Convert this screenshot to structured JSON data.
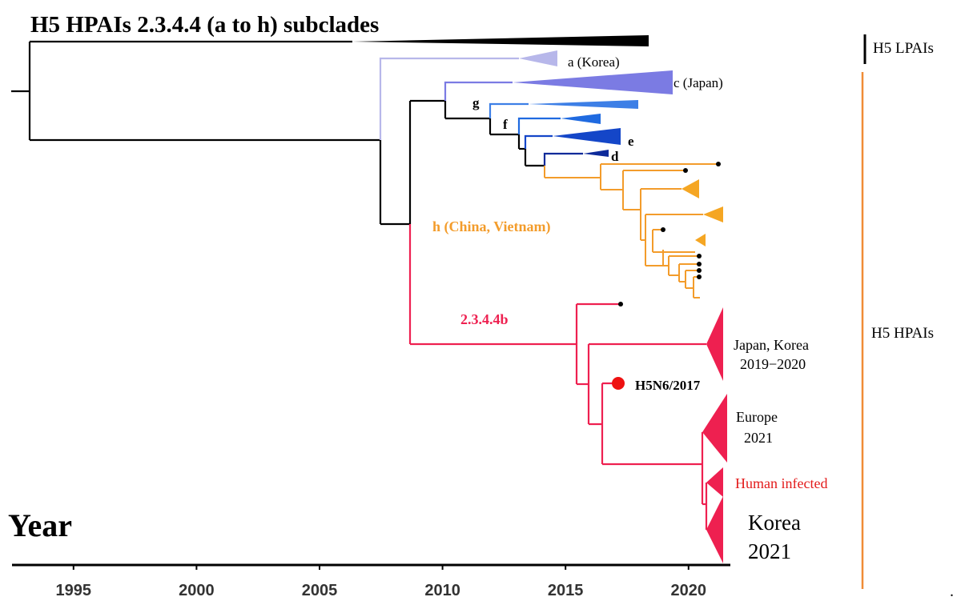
{
  "title": "H5 HPAIs 2.3.4.4 (a to h) subclades",
  "colors": {
    "black": "#000000",
    "clade_a": "#b7b7ea",
    "clade_c": "#7b7be3",
    "clade_g": "#3d7fe6",
    "clade_f": "#1f6ae0",
    "clade_e": "#1446c8",
    "clade_d": "#0d2a9a",
    "clade_h": "#f39c2b",
    "clade_b": "#ee2050",
    "marker": "#ee1111",
    "human_label": "#e31a1a",
    "side_bar": "#f08c36"
  },
  "axis": {
    "title": "Year",
    "domain": [
      1992.5,
      2021.7
    ],
    "ticks": [
      1995,
      2000,
      2005,
      2010,
      2015,
      2020
    ],
    "tick_labels": [
      "1995",
      "2000",
      "2005",
      "2010",
      "2015",
      "2020"
    ]
  },
  "clade_labels": {
    "a": "a (Korea)",
    "c": "c (Japan)",
    "g": "g",
    "f": "f",
    "e": "e",
    "d": "d",
    "h": "h (China, Vietnam)",
    "b": "2.3.4.4b"
  },
  "strain_label": "H5N6/2017",
  "tip_labels": {
    "japan_korea_line1": "Japan, Korea",
    "japan_korea_line2": "2019−2020",
    "europe_line1": "Europe",
    "europe_line2": "2021",
    "human": "Human infected",
    "korea_line1": "Korea",
    "korea_line2": "2021"
  },
  "side_labels": {
    "lpai": "H5 LPAIs",
    "hpai": "H5 HPAIs"
  },
  "footnote": "."
}
